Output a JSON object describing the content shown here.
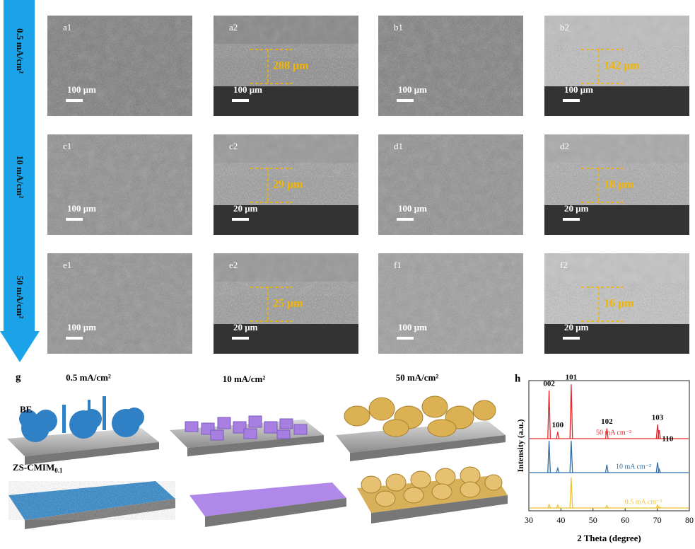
{
  "current_densities": [
    "0.5 mA/cm²",
    "10 mA/cm²",
    "50 mA/cm²"
  ],
  "panels": [
    {
      "label": "a1",
      "scale_bar": "100 μm"
    },
    {
      "label": "a2",
      "scale_bar": "100 μm",
      "thickness": "288 μm"
    },
    {
      "label": "b1",
      "scale_bar": "100 μm"
    },
    {
      "label": "b2",
      "scale_bar": "100 μm",
      "thickness": "142 μm"
    },
    {
      "label": "c1",
      "scale_bar": "100 μm"
    },
    {
      "label": "c2",
      "scale_bar": "20 μm",
      "thickness": "29 μm"
    },
    {
      "label": "d1",
      "scale_bar": "100 μm"
    },
    {
      "label": "d2",
      "scale_bar": "20 μm",
      "thickness": "18 μm"
    },
    {
      "label": "e1",
      "scale_bar": "100 μm"
    },
    {
      "label": "e2",
      "scale_bar": "20 μm",
      "thickness": "25 μm"
    },
    {
      "label": "f1",
      "scale_bar": "100 μm"
    },
    {
      "label": "f2",
      "scale_bar": "20 μm",
      "thickness": "16 μm"
    }
  ],
  "g": {
    "label": "g",
    "columns": [
      "0.5 mA/cm²",
      "10 mA/cm²",
      "50 mA/cm²"
    ],
    "rows": [
      {
        "text": "BE"
      },
      {
        "text": "ZS-CMIM",
        "subscript": "0.1"
      }
    ]
  },
  "h": {
    "label": "h",
    "type": "line",
    "xlabel": "2 Theta (degree)",
    "ylabel": "Intensity (a.u.)",
    "xlim": [
      30,
      80
    ],
    "xticks": [
      30,
      40,
      50,
      60,
      70,
      80
    ],
    "ylim": [
      0,
      100
    ],
    "peaks": [
      {
        "label": "002",
        "x": 36.3
      },
      {
        "label": "100",
        "x": 39.0
      },
      {
        "label": "101",
        "x": 43.2
      },
      {
        "label": "102",
        "x": 54.3
      },
      {
        "label": "103",
        "x": 70.1
      },
      {
        "label": "110",
        "x": 70.6
      }
    ],
    "series": [
      {
        "name": "50 mA cm⁻²",
        "color": "#e8262b",
        "values": [
          85,
          12,
          96,
          18,
          25,
          15
        ]
      },
      {
        "name": "10 mA cm⁻²",
        "color": "#2f6ea8",
        "values": [
          56,
          8,
          56,
          14,
          18,
          6
        ]
      },
      {
        "name": "0.5 mA cm⁻²",
        "color": "#f0c230",
        "values": [
          6,
          5,
          54,
          4,
          5,
          2
        ]
      }
    ]
  }
}
